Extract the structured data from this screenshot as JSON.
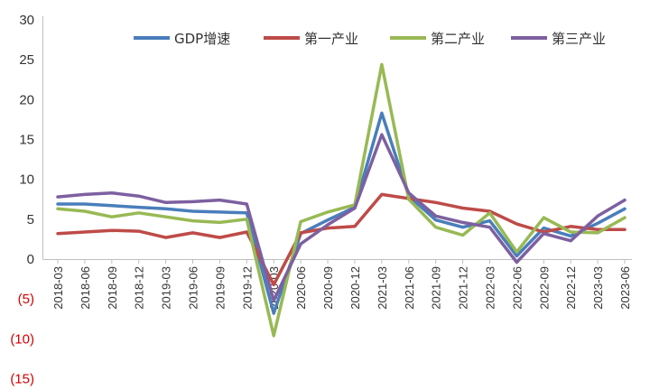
{
  "chart_data": {
    "type": "line",
    "title": "",
    "xlabel": "",
    "ylabel": "",
    "ylim": [
      -15,
      30
    ],
    "yticks": [
      {
        "value": 30,
        "label": "30",
        "color": "#333333"
      },
      {
        "value": 25,
        "label": "25",
        "color": "#333333"
      },
      {
        "value": 20,
        "label": "20",
        "color": "#333333"
      },
      {
        "value": 15,
        "label": "15",
        "color": "#333333"
      },
      {
        "value": 10,
        "label": "10",
        "color": "#333333"
      },
      {
        "value": 5,
        "label": "5",
        "color": "#333333"
      },
      {
        "value": 0,
        "label": "0",
        "color": "#333333"
      },
      {
        "value": -5,
        "label": "(5)",
        "color": "#d40000"
      },
      {
        "value": -10,
        "label": "(10)",
        "color": "#d40000"
      },
      {
        "value": -15,
        "label": "(15)",
        "color": "#d40000"
      }
    ],
    "grid": false,
    "legend_position": "top-right",
    "categories": [
      "2018-03",
      "2018-06",
      "2018-09",
      "2018-12",
      "2019-03",
      "2019-06",
      "2019-09",
      "2019-12",
      "2020-03",
      "2020-06",
      "2020-09",
      "2020-12",
      "2021-03",
      "2021-06",
      "2021-09",
      "2021-12",
      "2022-03",
      "2022-06",
      "2022-09",
      "2022-12",
      "2023-03",
      "2023-06"
    ],
    "series": [
      {
        "name": "GDP增速",
        "color": "#4a7ebb",
        "values": [
          6.9,
          6.9,
          6.7,
          6.5,
          6.3,
          6.0,
          5.9,
          5.8,
          -6.8,
          3.2,
          4.9,
          6.5,
          18.3,
          7.9,
          4.9,
          4.0,
          4.8,
          0.4,
          3.9,
          2.9,
          4.5,
          6.3
        ]
      },
      {
        "name": "第一产业",
        "color": "#be4b48",
        "values": [
          3.2,
          3.4,
          3.6,
          3.5,
          2.7,
          3.3,
          2.7,
          3.4,
          -3.2,
          3.3,
          3.9,
          4.1,
          8.1,
          7.6,
          7.1,
          6.4,
          6.0,
          4.4,
          3.4,
          4.1,
          3.7,
          3.7
        ]
      },
      {
        "name": "第二产业",
        "color": "#98b954",
        "values": [
          6.3,
          6.0,
          5.3,
          5.8,
          5.3,
          4.8,
          4.6,
          5.0,
          -9.6,
          4.7,
          5.9,
          6.8,
          24.4,
          7.5,
          4.0,
          3.0,
          5.8,
          0.9,
          5.2,
          3.4,
          3.3,
          5.2
        ]
      },
      {
        "name": "第三产业",
        "color": "#7d60a0",
        "values": [
          7.8,
          8.1,
          8.3,
          7.9,
          7.1,
          7.2,
          7.4,
          6.9,
          -5.2,
          1.9,
          4.3,
          6.4,
          15.6,
          8.3,
          5.4,
          4.6,
          4.0,
          -0.4,
          3.2,
          2.3,
          5.4,
          7.4
        ]
      }
    ]
  }
}
